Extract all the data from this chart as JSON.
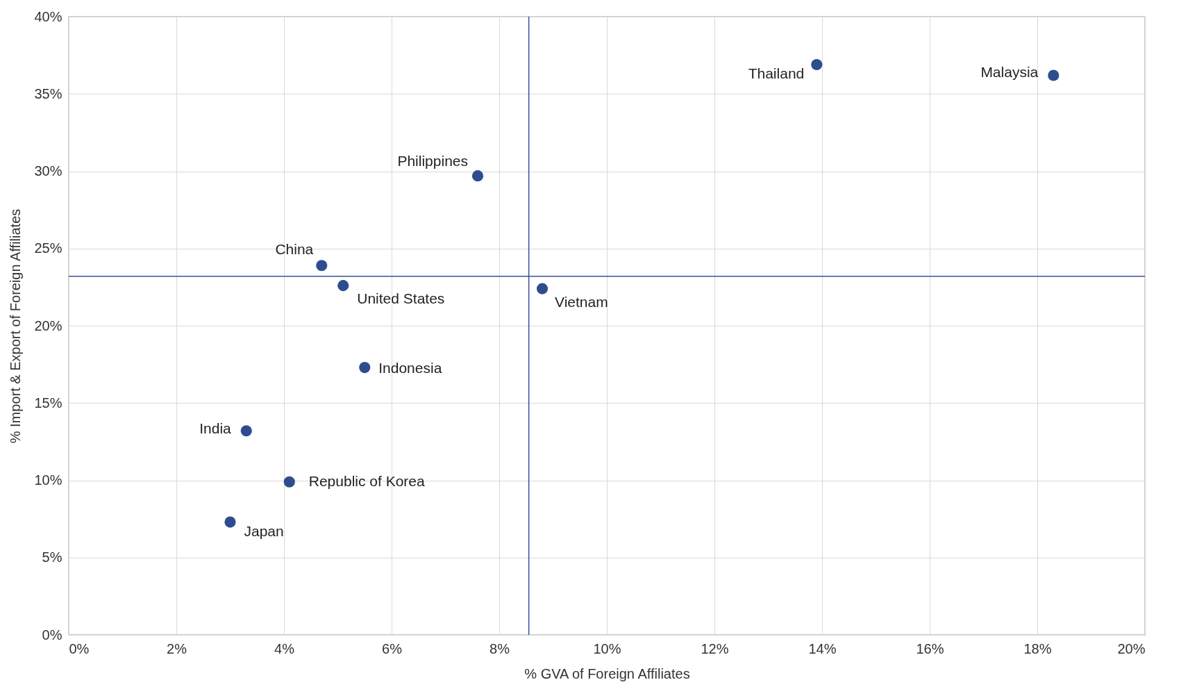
{
  "chart_data": {
    "type": "scatter",
    "xlabel": "% GVA of Foreign Affiliates",
    "ylabel": "% Import & Export of Foreign Affiliates",
    "x": [
      13.9,
      18.3,
      7.6,
      4.7,
      5.1,
      8.8,
      5.5,
      3.3,
      4.1,
      3.0
    ],
    "series": [
      {
        "color": "#2e4d8f",
        "values": [
          36.9,
          36.2,
          29.7,
          23.9,
          22.6,
          22.4,
          17.3,
          13.2,
          9.9,
          7.3
        ]
      }
    ],
    "xlim": [
      0,
      20
    ],
    "xticks": [
      {
        "value": 0,
        "label": "0%"
      },
      {
        "value": 2,
        "label": "2%"
      },
      {
        "value": 4,
        "label": "4%"
      },
      {
        "value": 6,
        "label": "6%"
      },
      {
        "value": 8,
        "label": "8%"
      },
      {
        "value": 10,
        "label": "10%"
      },
      {
        "value": 12,
        "label": "12%"
      },
      {
        "value": 14,
        "label": "14%"
      },
      {
        "value": 16,
        "label": "16%"
      },
      {
        "value": 18,
        "label": "18%"
      },
      {
        "value": 20,
        "label": "20%"
      }
    ],
    "ylim": [
      0,
      40
    ],
    "yticks": [
      {
        "value": 0,
        "label": "0%"
      },
      {
        "value": 5,
        "label": "5%"
      },
      {
        "value": 10,
        "label": "10%"
      },
      {
        "value": 15,
        "label": "15%"
      },
      {
        "value": 20,
        "label": "20%"
      },
      {
        "value": 25,
        "label": "25%"
      },
      {
        "value": 30,
        "label": "30%"
      },
      {
        "value": 35,
        "label": "35%"
      },
      {
        "value": 40,
        "label": "40%"
      }
    ],
    "ref_lines": [
      {
        "axis": "x",
        "value": 8.55,
        "color": "#3c4f9a"
      },
      {
        "axis": "y",
        "value": 23.2,
        "color": "#3c4f9a"
      }
    ],
    "annotations": [
      {
        "text": "Thailand",
        "x": 13.9,
        "y": 36.9
      },
      {
        "text": "Malaysia",
        "x": 18.3,
        "y": 36.2
      },
      {
        "text": "Philippines",
        "x": 7.6,
        "y": 29.7
      },
      {
        "text": "China",
        "x": 4.7,
        "y": 23.9
      },
      {
        "text": "United States",
        "x": 5.1,
        "y": 22.6
      },
      {
        "text": "Vietnam",
        "x": 8.8,
        "y": 22.4
      },
      {
        "text": "Indonesia",
        "x": 5.5,
        "y": 17.3
      },
      {
        "text": "India",
        "x": 3.3,
        "y": 13.2
      },
      {
        "text": "Republic of Korea",
        "x": 4.1,
        "y": 9.9
      },
      {
        "text": "Japan",
        "x": 3.0,
        "y": 7.3
      }
    ],
    "grid": true,
    "marker": "circle"
  }
}
